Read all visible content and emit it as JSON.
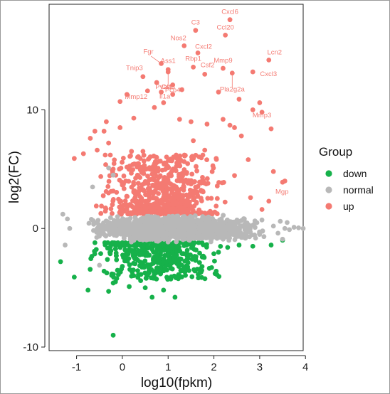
{
  "chart_data": {
    "type": "scatter",
    "xlabel": "log10(fpkm)",
    "ylabel": "log2(FC)",
    "xlim": [
      -1.6,
      3.95
    ],
    "ylim": [
      -10.3,
      18.9
    ],
    "x_ticks": [
      -1,
      0,
      1,
      2,
      3,
      4
    ],
    "y_ticks": [
      -10,
      0,
      10
    ],
    "grid": false,
    "legend": {
      "title": "Group",
      "placement": "right",
      "entries": [
        {
          "name": "down",
          "color": "#16b14a"
        },
        {
          "name": "normal",
          "color": "#b8b8b8"
        },
        {
          "name": "up",
          "color": "#f47a72"
        }
      ]
    },
    "series": [
      {
        "name": "down",
        "color": "#16b14a",
        "points": [
          [
            -1.35,
            -2.8
          ],
          [
            -1.05,
            -4.1
          ],
          [
            -0.75,
            -5.2
          ],
          [
            -0.4,
            -3.6
          ],
          [
            -0.2,
            -4.6
          ],
          [
            -0.3,
            -5.3
          ],
          [
            -0.15,
            -4.5
          ],
          [
            0.15,
            -4.9
          ],
          [
            0.4,
            -4.4
          ],
          [
            0.5,
            -5.0
          ],
          [
            0.65,
            -5.8
          ],
          [
            0.9,
            -5.2
          ],
          [
            1.15,
            -5.8
          ],
          [
            0.35,
            -3.9
          ],
          [
            0.75,
            -3.5
          ],
          [
            1.05,
            -3.0
          ],
          [
            1.3,
            -3.1
          ],
          [
            1.6,
            -2.7
          ],
          [
            1.95,
            -3.3
          ],
          [
            2.05,
            -3.6
          ],
          [
            2.3,
            -1.6
          ],
          [
            2.55,
            -1.4
          ],
          [
            2.85,
            -1.5
          ],
          [
            3.25,
            -1.4
          ],
          [
            3.5,
            -1.0
          ],
          [
            -0.2,
            -9.0
          ],
          [
            0.0,
            -3.2
          ],
          [
            0.25,
            -2.4
          ],
          [
            1.75,
            -2.4
          ],
          [
            2.1,
            -2.0
          ]
        ],
        "bulk": {
          "count": 420,
          "x_range": [
            -0.9,
            2.4
          ],
          "y_range": [
            -4.3,
            -1.2
          ]
        }
      },
      {
        "name": "normal",
        "color": "#b8b8b8",
        "points": [
          [
            -1.25,
            -1.4
          ],
          [
            -1.3,
            1.2
          ],
          [
            -1.2,
            0.8
          ],
          [
            -1.15,
            0.0
          ],
          [
            -0.3,
            5.1
          ],
          [
            -0.2,
            4.5
          ],
          [
            -0.65,
            3.5
          ],
          [
            -0.5,
            -3.1
          ],
          [
            3.55,
            0.0
          ],
          [
            3.65,
            -0.1
          ],
          [
            3.75,
            0.1
          ],
          [
            3.85,
            0.05
          ],
          [
            3.95,
            0.0
          ],
          [
            3.6,
            0.5
          ],
          [
            3.4,
            -0.4
          ],
          [
            3.45,
            0.6
          ],
          [
            3.5,
            -0.9
          ],
          [
            3.3,
            0.2
          ]
        ],
        "bulk": {
          "count": 1900,
          "x_range": [
            -1.0,
            3.35
          ],
          "y_range": [
            -1.2,
            1.3
          ]
        }
      },
      {
        "name": "up",
        "color": "#f47a72",
        "points": [
          [
            -0.35,
            9.0
          ],
          [
            -0.05,
            8.5
          ],
          [
            -0.4,
            8.2
          ],
          [
            -0.6,
            8.2
          ],
          [
            -0.7,
            7.6
          ],
          [
            -0.3,
            7.2
          ],
          [
            0.2,
            6.5
          ],
          [
            0.45,
            6.5
          ],
          [
            0.25,
            9.3
          ],
          [
            0.7,
            10.2
          ],
          [
            0.9,
            10.6
          ],
          [
            1.1,
            11.3
          ],
          [
            1.3,
            11.7
          ],
          [
            1.25,
            9.2
          ],
          [
            1.5,
            9.0
          ],
          [
            1.85,
            8.8
          ],
          [
            1.55,
            7.4
          ],
          [
            1.8,
            6.6
          ],
          [
            2.05,
            5.9
          ],
          [
            2.2,
            9.2
          ],
          [
            2.35,
            8.7
          ],
          [
            2.45,
            8.5
          ],
          [
            2.6,
            7.8
          ],
          [
            2.75,
            5.8
          ],
          [
            3.25,
            8.4
          ],
          [
            3.3,
            4.8
          ],
          [
            3.5,
            3.9
          ],
          [
            2.85,
            10.0
          ],
          [
            3.0,
            10.6
          ],
          [
            2.55,
            10.9
          ],
          [
            2.1,
            11.5
          ],
          [
            -0.05,
            10.7
          ],
          [
            0.1,
            11.3
          ],
          [
            -1.05,
            5.9
          ],
          [
            -0.85,
            6.3
          ],
          [
            -0.55,
            6.6
          ],
          [
            -0.2,
            5.0
          ],
          [
            2.8,
            2.6
          ],
          [
            3.05,
            1.6
          ],
          [
            3.2,
            2.3
          ]
        ],
        "bulk": {
          "count": 650,
          "x_range": [
            -0.85,
            2.6
          ],
          "y_range": [
            1.2,
            6.2
          ]
        }
      }
    ],
    "labeled_points": [
      {
        "label": "Cxcl6",
        "x": 2.35,
        "y": 17.6
      },
      {
        "label": "C3",
        "x": 1.6,
        "y": 16.7
      },
      {
        "label": "Ccl20",
        "x": 2.25,
        "y": 16.3
      },
      {
        "label": "Nos2",
        "x": 1.35,
        "y": 15.4
      },
      {
        "label": "Cxcl2",
        "x": 1.65,
        "y": 14.8
      },
      {
        "label": "Lcn2",
        "x": 3.2,
        "y": 14.2
      },
      {
        "label": "Fgr",
        "x": 0.85,
        "y": 13.9
      },
      {
        "label": "Ass1",
        "x": 1.0,
        "y": 13.4
      },
      {
        "label": "Rbp1",
        "x": 1.55,
        "y": 13.6
      },
      {
        "label": "Mmp9",
        "x": 2.2,
        "y": 13.5
      },
      {
        "label": "Tnip3",
        "x": 0.45,
        "y": 12.8
      },
      {
        "label": "Csf2",
        "x": 1.8,
        "y": 13.0
      },
      {
        "label": "Cxcl3",
        "x": 2.85,
        "y": 13.2
      },
      {
        "label": "Pvalb",
        "x": 0.75,
        "y": 12.3
      },
      {
        "label": "Csf3",
        "x": 1.0,
        "y": 13.2
      },
      {
        "label": "Pla2g2a",
        "x": 2.4,
        "y": 13.1
      },
      {
        "label": "Mmp12",
        "x": 0.55,
        "y": 11.6
      },
      {
        "label": "Il1a",
        "x": 0.85,
        "y": 11.5
      },
      {
        "label": "Pcp4",
        "x": 1.1,
        "y": 12.1
      },
      {
        "label": "Mmp3",
        "x": 3.05,
        "y": 9.8
      },
      {
        "label": "Mgp",
        "x": 3.55,
        "y": 4.0
      }
    ]
  }
}
